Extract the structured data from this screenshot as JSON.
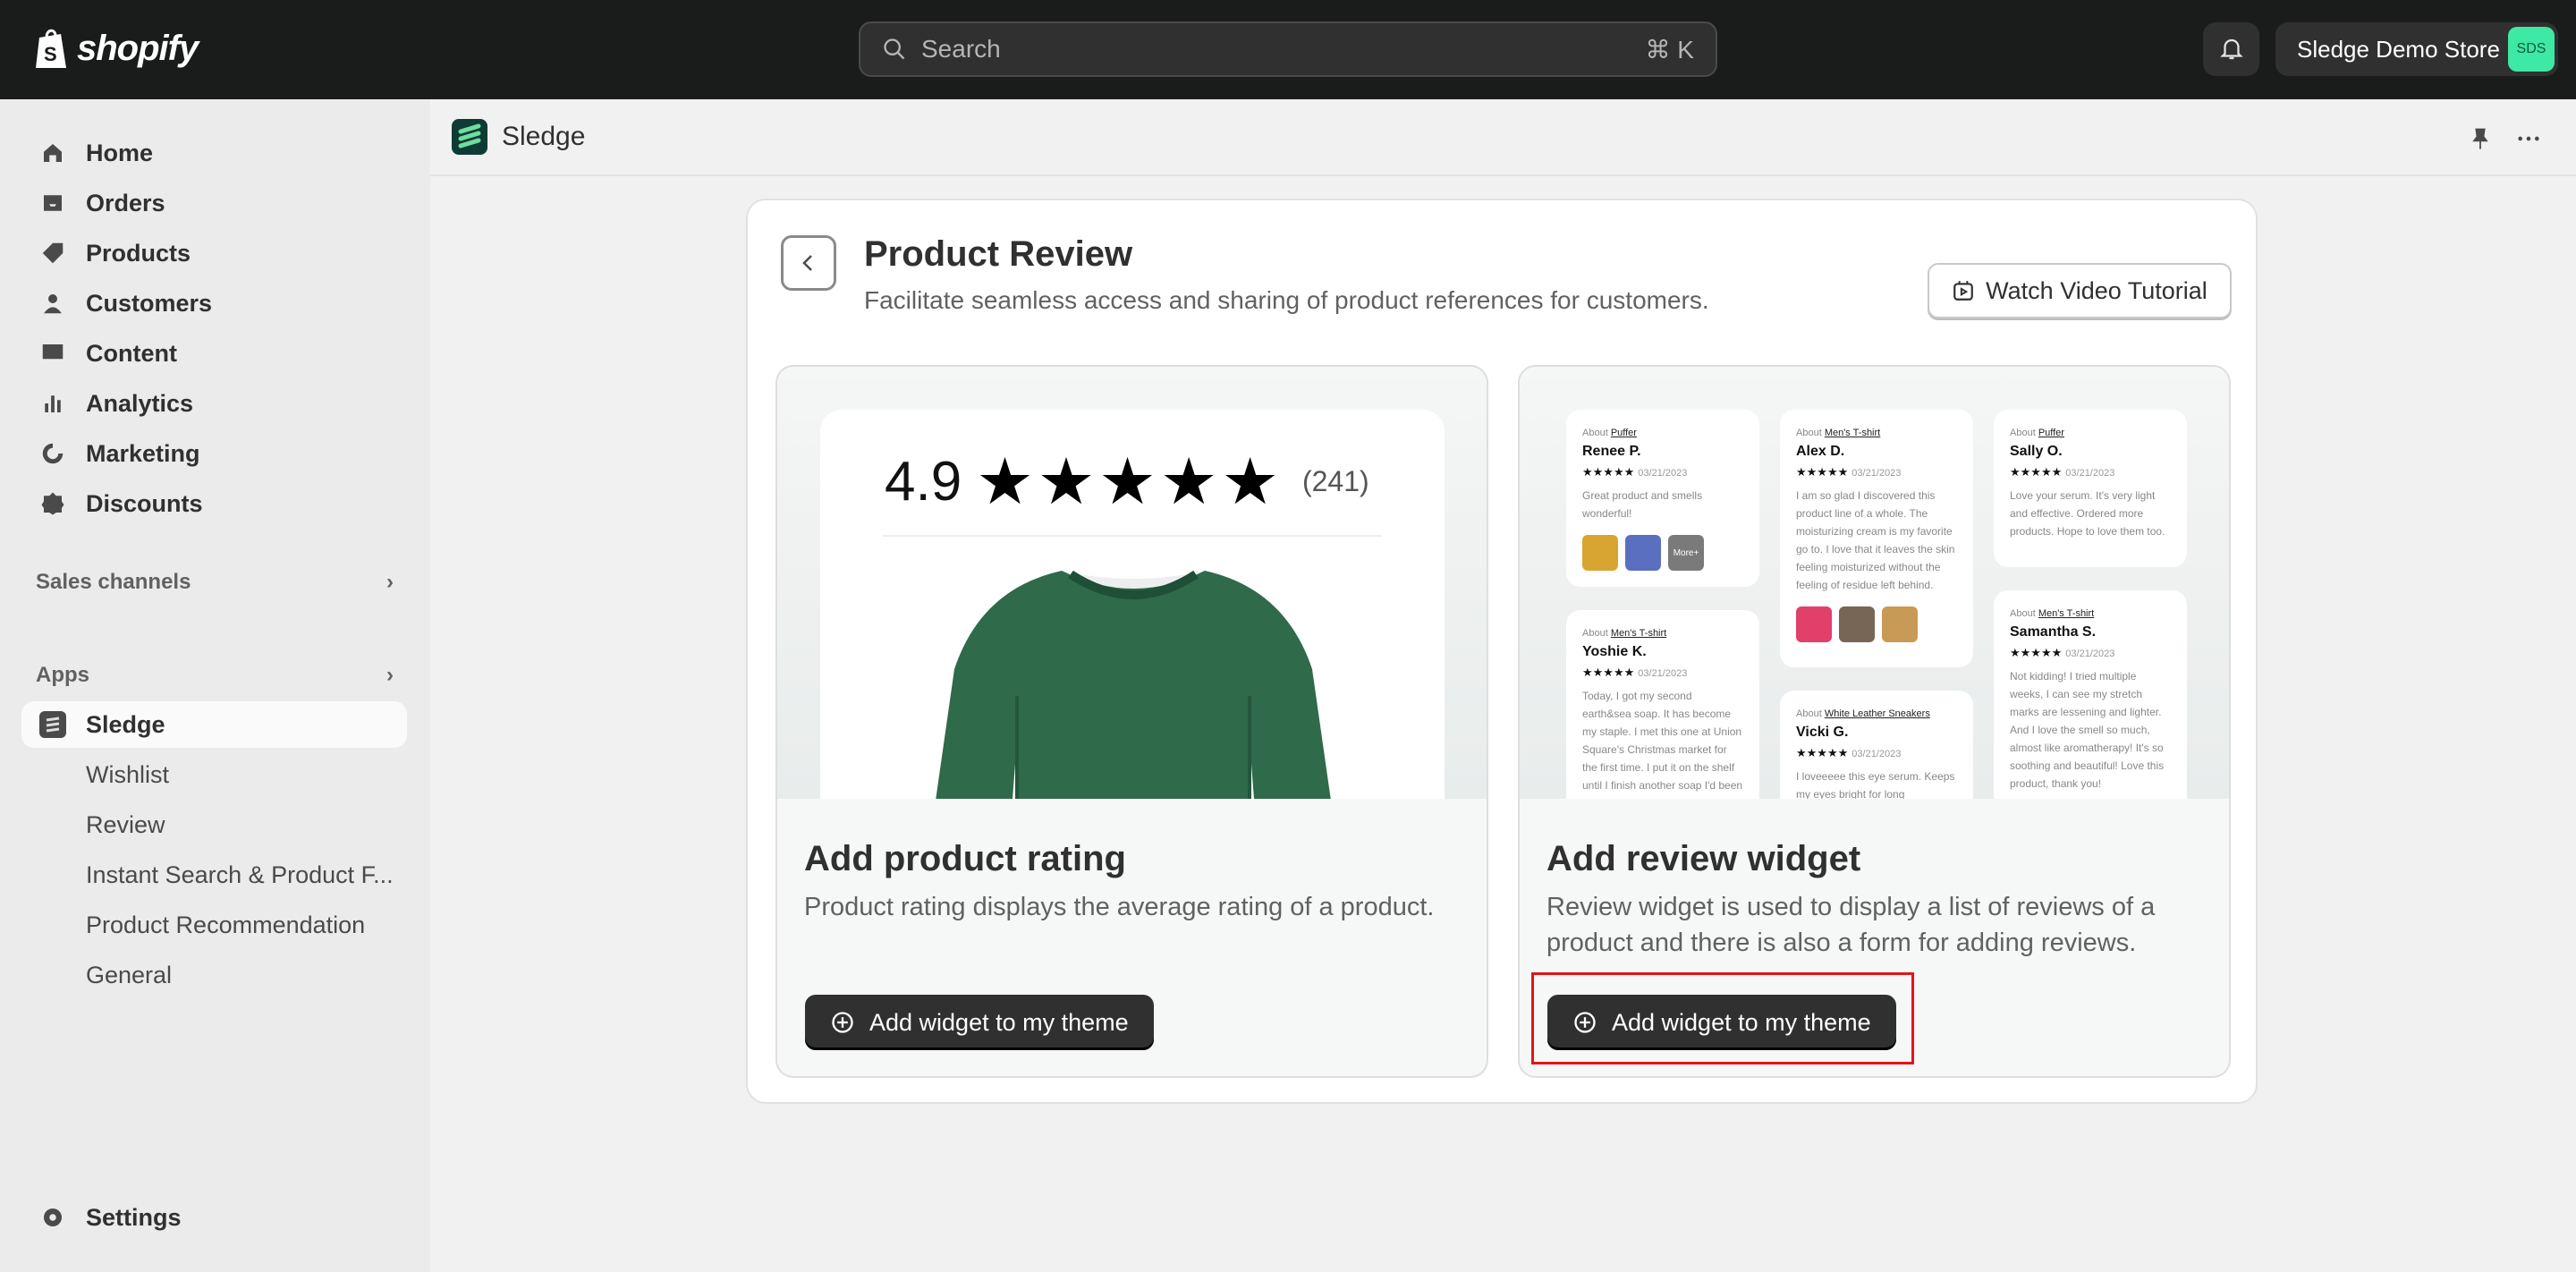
{
  "topbar": {
    "logo": "shopify",
    "search_placeholder": "Search",
    "search_shortcut": "⌘ K",
    "store_name": "Sledge Demo Store",
    "store_initials": "SDS"
  },
  "sidebar": {
    "items": [
      {
        "label": "Home",
        "icon": "home-icon"
      },
      {
        "label": "Orders",
        "icon": "inbox-icon"
      },
      {
        "label": "Products",
        "icon": "tag-icon"
      },
      {
        "label": "Customers",
        "icon": "person-icon"
      },
      {
        "label": "Content",
        "icon": "image-icon"
      },
      {
        "label": "Analytics",
        "icon": "bar-chart-icon"
      },
      {
        "label": "Marketing",
        "icon": "target-icon"
      },
      {
        "label": "Discounts",
        "icon": "discount-icon"
      }
    ],
    "sales_channels": "Sales channels",
    "apps": "Apps",
    "app_active": "Sledge",
    "app_subitems": [
      "Wishlist",
      "Review",
      "Instant Search & Product F...",
      "Product Recommendation",
      "General"
    ],
    "settings": "Settings"
  },
  "app_header": {
    "title": "Sledge"
  },
  "page": {
    "title": "Product Review",
    "subtitle": "Facilitate seamless access and sharing of product references for customers.",
    "watch_button": "Watch Video Tutorial",
    "cards": [
      {
        "title": "Add product rating",
        "description": "Product rating displays the average rating of a product.",
        "button": "Add widget to my theme",
        "preview": {
          "rating": "4.9",
          "count": "(241)",
          "stars": 5
        }
      },
      {
        "title": "Add review widget",
        "description": "Review widget is used to display a list of reviews of a product and there is also a form for adding reviews.",
        "button": "Add widget to my theme"
      }
    ],
    "reviews": [
      {
        "about": "About",
        "product": "Puffer",
        "name": "Renee P.",
        "date": "03/21/2023",
        "body": "Great product and smells wonderful!",
        "pics": 3,
        "more": "More+"
      },
      {
        "about": "About",
        "product": "Men's T-shirt",
        "name": "Yoshie K.",
        "date": "03/21/2023",
        "body": "Today, I got my second earth&sea soap. It has become my staple. I met this one at Union Square's Christmas market for the first time. I put it on the shelf until I finish another soap I'd been using because the"
      },
      {
        "about": "About",
        "product": "Men's T-shirt",
        "name": "Alex D.",
        "date": "03/21/2023",
        "body": "I am so glad I discovered this product line of a whole. The moisturizing cream is my favorite go to. I love that it leaves the skin feeling moisturized without the feeling of residue left behind.",
        "pics": 3
      },
      {
        "about": "About",
        "product": "White Leather Sneakers",
        "name": "Vicki G.",
        "date": "03/21/2023",
        "body": "I loveeeee this eye serum. Keeps my eyes bright for long"
      },
      {
        "about": "About",
        "product": "Puffer",
        "name": "Sally O.",
        "date": "03/21/2023",
        "body": "Love your serum. It's very light and effective. Ordered more products. Hope to love them too."
      },
      {
        "about": "About",
        "product": "Men's T-shirt",
        "name": "Samantha S.",
        "date": "03/21/2023",
        "body": "Not kidding! I tried multiple weeks, I can see my stretch marks are lessening and lighter. And I love the smell so much, almost like aromatherapy! It's so soothing and beautiful! Love this product, thank you!"
      }
    ]
  },
  "colors": {
    "topbar": "#1a1c1c",
    "primary_button": "#303030",
    "highlight": "#e3141a",
    "avatar": "#3ee8a5"
  }
}
